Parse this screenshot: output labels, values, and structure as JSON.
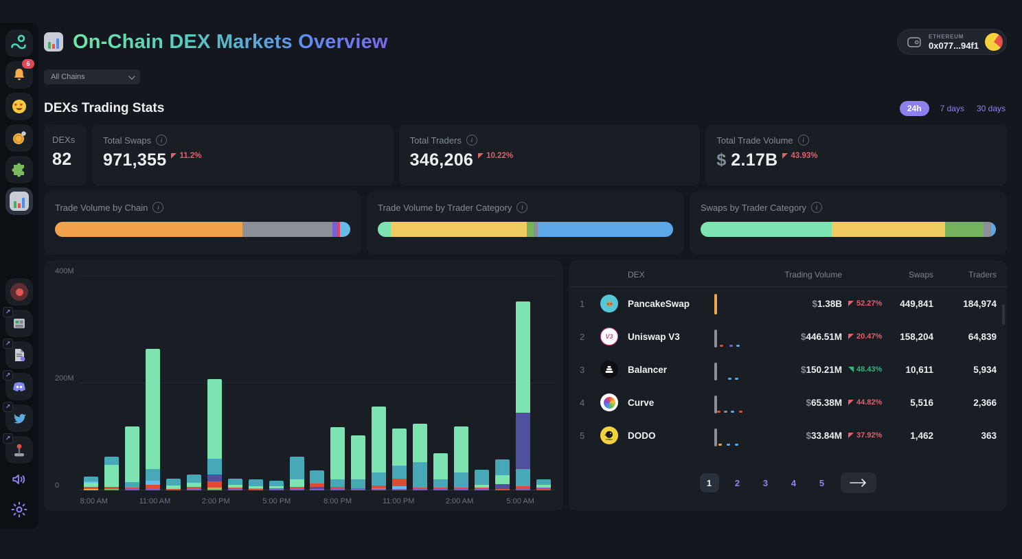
{
  "app": {
    "title": "On-Chain DEX Markets Overview",
    "logo": "bar-chart-logo-icon"
  },
  "wallet": {
    "network": "ETHEREUM",
    "address": "0x077...94f1"
  },
  "filters": {
    "chain_select": {
      "value": "All Chains"
    },
    "time_ranges": [
      {
        "label": "24h",
        "active": true
      },
      {
        "label": "7 days",
        "active": false
      },
      {
        "label": "30 days",
        "active": false
      }
    ]
  },
  "section": {
    "title": "DEXs Trading Stats"
  },
  "stats": [
    {
      "label": "DEXs",
      "value": "82",
      "info": false
    },
    {
      "label": "Total Swaps",
      "value": "971,355",
      "info": true,
      "change": "11.2%",
      "direction": "up"
    },
    {
      "label": "Total Traders",
      "value": "346,206",
      "info": true,
      "change": "10.22%",
      "direction": "up"
    },
    {
      "label": "Total Trade Volume",
      "prefix": "$",
      "value": "2.17B",
      "info": true,
      "change": "43.93%",
      "direction": "up"
    }
  ],
  "colors": {
    "accent_purple": "#8d84ee",
    "up_red": "#e2606b",
    "down_green": "#33b57e",
    "mint": "#7de4b1",
    "teal": "#47a8b8",
    "indigo": "#4f519f",
    "red": "#df4b34",
    "lblue": "#66bbe8",
    "purple": "#7a5fd0",
    "orange": "#f0a24c",
    "green": "#74b35c",
    "gray": "#8a8f98",
    "yellow": "#efcb5f",
    "blue": "#5ba7e8",
    "crimson": "#e8415a"
  },
  "chart_data": [
    {
      "type": "stacked_bar",
      "title": "Hourly trade volume by category",
      "x": [
        "8:00 AM",
        "9:00 AM",
        "10:00 AM",
        "11:00 AM",
        "12:00 PM",
        "1:00 PM",
        "2:00 PM",
        "3:00 PM",
        "4:00 PM",
        "5:00 PM",
        "6:00 PM",
        "7:00 PM",
        "8:00 PM",
        "9:00 PM",
        "10:00 PM",
        "11:00 PM",
        "12:00 AM",
        "1:00 AM",
        "2:00 AM",
        "3:00 AM",
        "4:00 AM",
        "5:00 AM",
        "6:00 AM"
      ],
      "x_tick_every": 3,
      "ylim": [
        0,
        400
      ],
      "unit": "M",
      "yticks": [
        {
          "label": "0",
          "value": 0
        },
        {
          "label": "200M",
          "value": 200
        },
        {
          "label": "400M",
          "value": 400
        }
      ],
      "bars": [
        {
          "segments": [
            [
              "orange",
              2
            ],
            [
              "red",
              3
            ],
            [
              "purple",
              2
            ],
            [
              "mint",
              7
            ],
            [
              "lblue",
              3
            ],
            [
              "teal",
              9
            ]
          ]
        },
        {
          "segments": [
            [
              "green",
              2
            ],
            [
              "red",
              3
            ],
            [
              "purple",
              2
            ],
            [
              "mint",
              41
            ],
            [
              "teal",
              15
            ]
          ]
        },
        {
          "segments": [
            [
              "purple",
              2
            ],
            [
              "red",
              3
            ],
            [
              "teal",
              10
            ],
            [
              "mint",
              104
            ]
          ]
        },
        {
          "segments": [
            [
              "purple",
              4
            ],
            [
              "red",
              6
            ],
            [
              "lblue",
              8
            ],
            [
              "teal",
              22
            ],
            [
              "mint",
              224
            ]
          ]
        },
        {
          "segments": [
            [
              "red",
              2
            ],
            [
              "mint",
              7
            ],
            [
              "teal",
              13
            ]
          ]
        },
        {
          "segments": [
            [
              "purple",
              2
            ],
            [
              "red",
              4
            ],
            [
              "mint",
              8
            ],
            [
              "teal",
              15
            ]
          ]
        },
        {
          "segments": [
            [
              "green",
              3
            ],
            [
              "orange",
              2
            ],
            [
              "red",
              12
            ],
            [
              "indigo",
              12
            ],
            [
              "teal",
              30
            ],
            [
              "mint",
              149
            ]
          ]
        },
        {
          "segments": [
            [
              "purple",
              2
            ],
            [
              "red",
              3
            ],
            [
              "mint",
              5
            ],
            [
              "teal",
              12
            ]
          ]
        },
        {
          "segments": [
            [
              "red",
              2
            ],
            [
              "green",
              2
            ],
            [
              "mint",
              4
            ],
            [
              "teal",
              12
            ]
          ]
        },
        {
          "segments": [
            [
              "purple",
              2
            ],
            [
              "red",
              2
            ],
            [
              "mint",
              4
            ],
            [
              "teal",
              10
            ]
          ]
        },
        {
          "segments": [
            [
              "purple",
              2
            ],
            [
              "red",
              5
            ],
            [
              "mint",
              14
            ],
            [
              "teal",
              42
            ]
          ]
        },
        {
          "segments": [
            [
              "purple",
              3
            ],
            [
              "indigo",
              4
            ],
            [
              "red",
              6
            ],
            [
              "teal",
              24
            ]
          ]
        },
        {
          "segments": [
            [
              "purple",
              2
            ],
            [
              "red",
              4
            ],
            [
              "teal",
              15
            ],
            [
              "mint",
              97
            ]
          ]
        },
        {
          "segments": [
            [
              "purple",
              2
            ],
            [
              "red",
              2
            ],
            [
              "teal",
              16
            ],
            [
              "mint",
              83
            ]
          ]
        },
        {
          "segments": [
            [
              "purple",
              2
            ],
            [
              "green",
              2
            ],
            [
              "red",
              5
            ],
            [
              "teal",
              25
            ],
            [
              "mint",
              122
            ]
          ]
        },
        {
          "segments": [
            [
              "purple",
              2
            ],
            [
              "lblue",
              6
            ],
            [
              "red",
              14
            ],
            [
              "teal",
              24
            ],
            [
              "mint",
              70
            ]
          ]
        },
        {
          "segments": [
            [
              "purple",
              2
            ],
            [
              "red",
              3
            ],
            [
              "teal",
              48
            ],
            [
              "mint",
              71
            ]
          ]
        },
        {
          "segments": [
            [
              "purple",
              2
            ],
            [
              "red",
              3
            ],
            [
              "teal",
              16
            ],
            [
              "mint",
              48
            ]
          ]
        },
        {
          "segments": [
            [
              "purple",
              2
            ],
            [
              "red",
              3
            ],
            [
              "teal",
              28
            ],
            [
              "mint",
              86
            ]
          ]
        },
        {
          "segments": [
            [
              "purple",
              2
            ],
            [
              "red",
              3
            ],
            [
              "mint",
              5
            ],
            [
              "teal",
              28
            ]
          ]
        },
        {
          "segments": [
            [
              "red",
              3
            ],
            [
              "indigo",
              9
            ],
            [
              "mint",
              16
            ],
            [
              "teal",
              30
            ]
          ]
        },
        {
          "segments": [
            [
              "purple",
              3
            ],
            [
              "red",
              5
            ],
            [
              "teal",
              32
            ],
            [
              "indigo",
              105
            ],
            [
              "mint",
              208
            ]
          ]
        },
        {
          "segments": [
            [
              "red",
              3
            ],
            [
              "purple",
              2
            ],
            [
              "mint",
              5
            ],
            [
              "teal",
              10
            ]
          ]
        }
      ]
    },
    {
      "type": "stacked_bar_1d",
      "title": "Trade Volume by Chain",
      "segments": [
        [
          "orange",
          63.5
        ],
        [
          "gray",
          30.5
        ],
        [
          "purple",
          1.9
        ],
        [
          "crimson",
          0.6
        ],
        [
          "lblue",
          3.5
        ]
      ]
    },
    {
      "type": "stacked_bar_1d",
      "title": "Trade Volume by Trader Category",
      "segments": [
        [
          "mint",
          4.5
        ],
        [
          "yellow",
          45.9
        ],
        [
          "green",
          2.4
        ],
        [
          "gray",
          1.4
        ],
        [
          "blue",
          45.8
        ]
      ]
    },
    {
      "type": "stacked_bar_1d",
      "title": "Swaps by Trader Category",
      "segments": [
        [
          "mint",
          44.5
        ],
        [
          "yellow",
          38.2
        ],
        [
          "green",
          13.1
        ],
        [
          "gray",
          2.6
        ],
        [
          "blue",
          1.6
        ]
      ]
    }
  ],
  "table": {
    "headers": [
      "DEX",
      "Trading Volume",
      "Swaps",
      "Traders"
    ],
    "volume_prefix": "$",
    "rows": [
      {
        "rank": "1",
        "name": "PancakeSwap",
        "icon": "pancakeswap-icon",
        "volume": "1.38B",
        "change": "52.27%",
        "direction": "up",
        "swaps": "449,841",
        "traders": "184,974",
        "spark": {
          "bar": "orange",
          "dots": []
        }
      },
      {
        "rank": "2",
        "name": "Uniswap V3",
        "icon": "uniswap-icon",
        "volume": "446.51M",
        "change": "20.47%",
        "direction": "up",
        "swaps": "158,204",
        "traders": "64,839",
        "spark": {
          "bar": "gray",
          "dots": [
            {
              "x": 16,
              "c": "red"
            },
            {
              "x": 30,
              "c": "purple"
            },
            {
              "x": 40,
              "c": "blue"
            }
          ]
        }
      },
      {
        "rank": "3",
        "name": "Balancer",
        "icon": "balancer-icon",
        "volume": "150.21M",
        "change": "48.43%",
        "direction": "down",
        "swaps": "10,611",
        "traders": "5,934",
        "spark": {
          "bar": "gray",
          "dots": [
            {
              "x": 28,
              "c": "blue"
            },
            {
              "x": 38,
              "c": "blue"
            }
          ]
        }
      },
      {
        "rank": "4",
        "name": "Curve",
        "icon": "curve-icon",
        "volume": "65.38M",
        "change": "44.82%",
        "direction": "up",
        "swaps": "5,516",
        "traders": "2,366",
        "spark": {
          "bar": "gray",
          "dots": [
            {
              "x": 12,
              "c": "red"
            },
            {
              "x": 22,
              "c": "gray"
            },
            {
              "x": 32,
              "c": "blue"
            },
            {
              "x": 44,
              "c": "red"
            }
          ]
        }
      },
      {
        "rank": "5",
        "name": "DODO",
        "icon": "dodo-icon",
        "volume": "33.84M",
        "change": "37.92%",
        "direction": "up",
        "swaps": "1,462",
        "traders": "363",
        "spark": {
          "bar": "gray",
          "dots": [
            {
              "x": 14,
              "c": "orange"
            },
            {
              "x": 26,
              "c": "blue"
            },
            {
              "x": 38,
              "c": "blue"
            }
          ]
        }
      }
    ]
  },
  "pagination": {
    "pages": [
      "1",
      "2",
      "3",
      "4",
      "5"
    ],
    "active": "1",
    "next": "→"
  },
  "sidebar": {
    "items": [
      {
        "name": "logo",
        "icon": "app-logo-icon",
        "group": "top"
      },
      {
        "name": "notifications",
        "icon": "bell-icon",
        "badge": "6",
        "group": "top"
      },
      {
        "name": "favorites",
        "icon": "heart-eyes-icon",
        "group": "top"
      },
      {
        "name": "tokens",
        "icon": "coin-icon",
        "group": "top"
      },
      {
        "name": "integrations",
        "icon": "puzzle-icon",
        "group": "top"
      },
      {
        "name": "dex-markets",
        "icon": "bar-chart-icon",
        "active": true,
        "group": "top"
      },
      {
        "name": "live",
        "icon": "record-icon",
        "group": "links"
      },
      {
        "name": "news",
        "icon": "news-icon",
        "external": true,
        "group": "links"
      },
      {
        "name": "docs",
        "icon": "document-icon",
        "external": true,
        "group": "links"
      },
      {
        "name": "discord",
        "icon": "discord-icon",
        "external": true,
        "group": "links"
      },
      {
        "name": "twitter",
        "icon": "twitter-icon",
        "external": true,
        "group": "links"
      },
      {
        "name": "games",
        "icon": "joystick-icon",
        "external": true,
        "group": "links"
      },
      {
        "name": "sound",
        "icon": "speaker-icon",
        "group": "bottom"
      },
      {
        "name": "settings",
        "icon": "settings-gear-icon",
        "group": "bottom"
      }
    ]
  }
}
